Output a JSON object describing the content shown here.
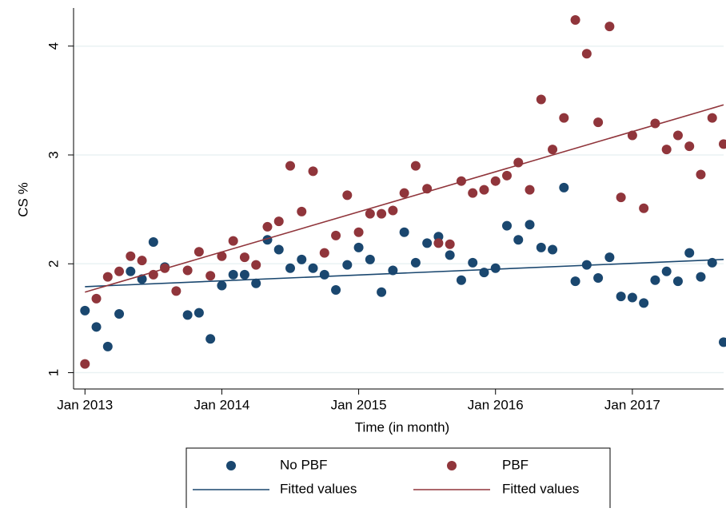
{
  "chart_data": {
    "type": "scatter",
    "x_label": "Time (in month)",
    "y_label": "CS %",
    "xlim": [
      "2012-12",
      "2017-09"
    ],
    "xticks": [
      {
        "value": "2013-01",
        "label": "Jan 2013"
      },
      {
        "value": "2014-01",
        "label": "Jan 2014"
      },
      {
        "value": "2015-01",
        "label": "Jan 2015"
      },
      {
        "value": "2016-01",
        "label": "Jan 2016"
      },
      {
        "value": "2017-01",
        "label": "Jan 2017"
      }
    ],
    "ylim": [
      0.85,
      4.35
    ],
    "yticks": [
      1,
      2,
      3,
      4
    ],
    "grid": true,
    "legend": "bottom",
    "series": [
      {
        "name": "No PBF",
        "type": "scatter",
        "color": "#1a476f",
        "x": [
          "2013-01",
          "2013-02",
          "2013-03",
          "2013-04",
          "2013-05",
          "2013-06",
          "2013-07",
          "2013-08",
          "2013-09",
          "2013-10",
          "2013-11",
          "2013-12",
          "2014-01",
          "2014-02",
          "2014-03",
          "2014-04",
          "2014-05",
          "2014-06",
          "2014-07",
          "2014-08",
          "2014-09",
          "2014-10",
          "2014-11",
          "2014-12",
          "2015-01",
          "2015-02",
          "2015-03",
          "2015-04",
          "2015-05",
          "2015-06",
          "2015-07",
          "2015-08",
          "2015-09",
          "2015-10",
          "2015-11",
          "2015-12",
          "2016-01",
          "2016-02",
          "2016-03",
          "2016-04",
          "2016-05",
          "2016-06",
          "2016-07",
          "2016-08",
          "2016-09",
          "2016-10",
          "2016-11",
          "2016-12",
          "2017-01",
          "2017-02",
          "2017-03",
          "2017-04",
          "2017-05",
          "2017-06",
          "2017-07",
          "2017-08",
          "2017-09"
        ],
        "values": [
          1.57,
          1.42,
          1.24,
          1.54,
          1.93,
          1.86,
          2.2,
          1.97,
          null,
          1.53,
          1.55,
          1.31,
          1.8,
          1.9,
          1.9,
          1.82,
          2.22,
          2.13,
          1.96,
          2.04,
          1.96,
          1.9,
          1.76,
          1.99,
          2.15,
          2.04,
          1.74,
          1.94,
          2.29,
          2.01,
          2.19,
          2.25,
          2.08,
          1.85,
          2.01,
          1.92,
          1.96,
          2.35,
          2.22,
          2.36,
          2.15,
          2.13,
          2.7,
          1.84,
          1.99,
          1.87,
          2.06,
          1.7,
          1.69,
          1.64,
          1.85,
          1.93,
          1.84,
          2.1,
          1.88,
          2.01,
          1.28
        ]
      },
      {
        "name": "PBF",
        "type": "scatter",
        "color": "#90353b",
        "x": [
          "2013-01",
          "2013-02",
          "2013-03",
          "2013-04",
          "2013-05",
          "2013-06",
          "2013-07",
          "2013-08",
          "2013-09",
          "2013-10",
          "2013-11",
          "2013-12",
          "2014-01",
          "2014-02",
          "2014-03",
          "2014-04",
          "2014-05",
          "2014-06",
          "2014-07",
          "2014-08",
          "2014-09",
          "2014-10",
          "2014-11",
          "2014-12",
          "2015-01",
          "2015-02",
          "2015-03",
          "2015-04",
          "2015-05",
          "2015-06",
          "2015-07",
          "2015-08",
          "2015-09",
          "2015-10",
          "2015-11",
          "2015-12",
          "2016-01",
          "2016-02",
          "2016-03",
          "2016-04",
          "2016-05",
          "2016-06",
          "2016-07",
          "2016-08",
          "2016-09",
          "2016-10",
          "2016-11",
          "2016-12",
          "2017-01",
          "2017-02",
          "2017-03",
          "2017-04",
          "2017-05",
          "2017-06",
          "2017-07",
          "2017-08",
          "2017-09"
        ],
        "values": [
          1.08,
          1.68,
          1.88,
          1.93,
          2.07,
          2.03,
          1.9,
          1.96,
          1.75,
          1.94,
          2.11,
          1.89,
          2.07,
          2.21,
          2.06,
          1.99,
          2.34,
          2.39,
          2.9,
          2.48,
          2.85,
          2.1,
          2.26,
          2.63,
          2.29,
          2.46,
          2.46,
          2.49,
          2.65,
          2.9,
          2.69,
          2.19,
          2.18,
          2.76,
          2.65,
          2.68,
          2.76,
          2.81,
          2.93,
          2.68,
          3.51,
          3.05,
          3.34,
          4.24,
          3.93,
          3.3,
          4.18,
          2.61,
          3.18,
          2.51,
          3.29,
          3.05,
          3.18,
          3.08,
          2.82,
          3.34,
          3.1
        ]
      },
      {
        "name": "Fitted values",
        "type": "line",
        "color": "#1a476f",
        "x": [
          "2013-01",
          "2017-09"
        ],
        "values": [
          1.79,
          2.04
        ]
      },
      {
        "name": "Fitted values",
        "type": "line",
        "color": "#90353b",
        "x": [
          "2013-01",
          "2017-09"
        ],
        "values": [
          1.74,
          3.46
        ]
      }
    ]
  }
}
